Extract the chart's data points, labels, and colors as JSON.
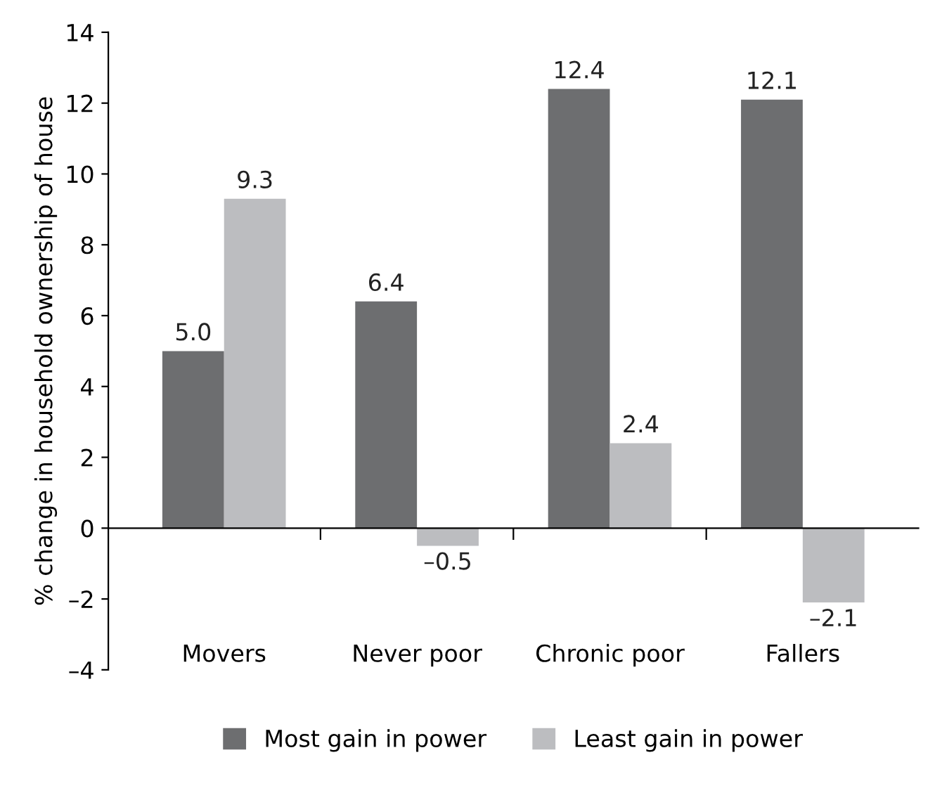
{
  "chart_data": {
    "type": "bar",
    "ylabel": "% change in household ownership of house",
    "categories": [
      "Movers",
      "Never poor",
      "Chronic poor",
      "Fallers"
    ],
    "series": [
      {
        "name": "Most gain in power",
        "color": "#6d6e70",
        "values": [
          5.0,
          6.4,
          12.4,
          12.1
        ],
        "value_labels": [
          "5.0",
          "6.4",
          "12.4",
          "12.1"
        ]
      },
      {
        "name": "Least gain in power",
        "color": "#bcbdc0",
        "values": [
          9.3,
          -0.5,
          2.4,
          -2.1
        ],
        "value_labels": [
          "9.3",
          "–0.5",
          "2.4",
          "–2.1"
        ]
      }
    ],
    "ylim": [
      -4,
      14
    ],
    "yticks": [
      {
        "value": -4,
        "label": "–4"
      },
      {
        "value": -2,
        "label": "–2"
      },
      0,
      2,
      4,
      6,
      8,
      10,
      12,
      14
    ],
    "legend": "bottom"
  }
}
